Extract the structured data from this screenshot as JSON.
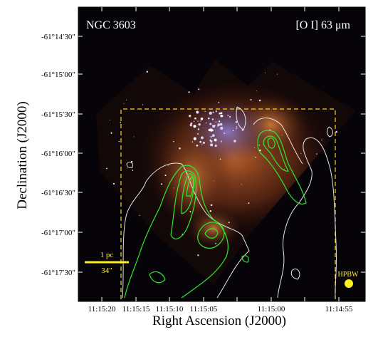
{
  "panel": {
    "object_name": "NGC 3603",
    "line_label": "[O I] 63 μm"
  },
  "axes": {
    "xlabel": "Right Ascension (J2000)",
    "ylabel": "Declination (J2000)",
    "x_ticks": [
      "11:15:20",
      "11:15:15",
      "11:15:10",
      "11:15:05",
      "11:15:00",
      "11:14:55"
    ],
    "y_ticks": [
      "-61°14′30″",
      "-61°15′00″",
      "-61°15′30″",
      "-61°16′00″",
      "-61°16′30″",
      "-61°17′00″",
      "-61°17′30″"
    ]
  },
  "scale_bar": {
    "top_label": "1 pc",
    "bottom_label": "34″"
  },
  "beam": {
    "label": "HPBW"
  },
  "colors": {
    "background": "#060408",
    "nebula": "#b0552a",
    "stars": "#c8c0ff",
    "contour_green": "#2ee82e",
    "contour_white": "#e6e6e6",
    "annot_yellow": "#ffee22",
    "footprint": "#ffd21a"
  }
}
